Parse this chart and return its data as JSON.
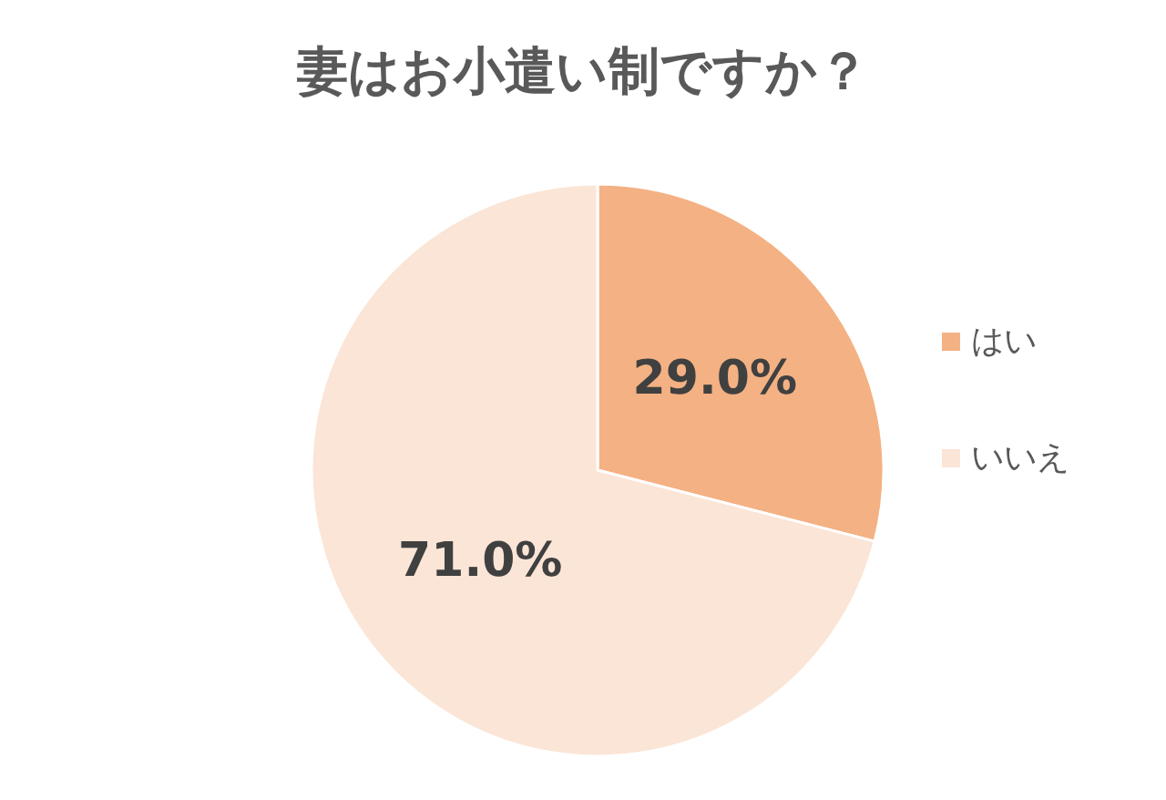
{
  "chart_data": {
    "type": "pie",
    "title": "妻はお小遣い制ですか？",
    "categories": [
      "はい",
      "いいえ"
    ],
    "values": [
      29.0,
      71.0
    ],
    "colors": [
      "#f4b183",
      "#fbe5d6"
    ],
    "value_labels": [
      "29.0%",
      "71.0%"
    ],
    "legend": "right"
  }
}
